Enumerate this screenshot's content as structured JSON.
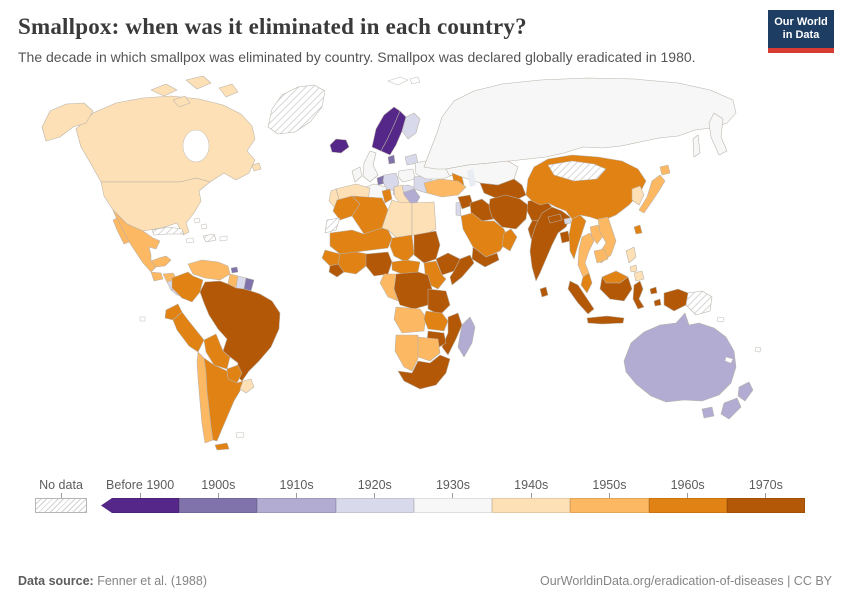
{
  "header": {
    "title": "Smallpox: when was it eliminated in each country?",
    "subtitle": "The decade in which smallpox was eliminated by country. Smallpox was declared globally eradicated in 1980.",
    "logo": {
      "line1": "Our World",
      "line2": "in Data",
      "bg_color": "#1d3d63",
      "accent_color": "#d73c32"
    }
  },
  "legend": {
    "no_data_label": "No data",
    "categories": [
      {
        "label": "Before 1900",
        "color": "#542788"
      },
      {
        "label": "1900s",
        "color": "#8073ac"
      },
      {
        "label": "1910s",
        "color": "#b2abd2"
      },
      {
        "label": "1920s",
        "color": "#d8daeb"
      },
      {
        "label": "1930s",
        "color": "#f7f7f7"
      },
      {
        "label": "1940s",
        "color": "#fee0b6"
      },
      {
        "label": "1950s",
        "color": "#fdb863"
      },
      {
        "label": "1960s",
        "color": "#e08214"
      },
      {
        "label": "1970s",
        "color": "#b35806"
      }
    ]
  },
  "footer": {
    "source_label": "Data source:",
    "source_value": "Fenner et al. (1988)",
    "credit": "OurWorldinData.org/eradication-of-diseases | CC BY"
  },
  "chart_data": {
    "type": "choropleth_map",
    "title": "Smallpox: when was it eliminated in each country?",
    "unit": "decade of smallpox elimination",
    "note": "Smallpox was declared globally eradicated in 1980",
    "categories": [
      "No data",
      "Before 1900",
      "1900s",
      "1910s",
      "1920s",
      "1930s",
      "1940s",
      "1950s",
      "1960s",
      "1970s"
    ],
    "regions": [
      {
        "name": "Canada",
        "category": "1940s"
      },
      {
        "name": "Greenland",
        "category": "No data"
      },
      {
        "name": "United States",
        "category": "1940s"
      },
      {
        "name": "Mexico",
        "category": "1950s"
      },
      {
        "name": "Guatemala",
        "category": "1950s"
      },
      {
        "name": "Honduras",
        "category": "1950s"
      },
      {
        "name": "Nicaragua",
        "category": "1920s"
      },
      {
        "name": "Costa Rica & Panama",
        "category": "1920s"
      },
      {
        "name": "Cuba",
        "category": "No data"
      },
      {
        "name": "Haiti & Dominican Republic",
        "category": "No data"
      },
      {
        "name": "Venezuela",
        "category": "1950s"
      },
      {
        "name": "Trinidad & Tobago",
        "category": "1900s"
      },
      {
        "name": "Colombia",
        "category": "1960s"
      },
      {
        "name": "Guyana",
        "category": "1950s"
      },
      {
        "name": "Suriname",
        "category": "1920s"
      },
      {
        "name": "French Guiana",
        "category": "1900s"
      },
      {
        "name": "Brazil",
        "category": "1970s"
      },
      {
        "name": "Ecuador",
        "category": "1960s"
      },
      {
        "name": "Peru",
        "category": "1960s"
      },
      {
        "name": "Bolivia",
        "category": "1960s"
      },
      {
        "name": "Paraguay",
        "category": "1960s"
      },
      {
        "name": "Chile",
        "category": "1950s"
      },
      {
        "name": "Argentina",
        "category": "1960s"
      },
      {
        "name": "Uruguay",
        "category": "1940s"
      },
      {
        "name": "Iceland",
        "category": "Before 1900"
      },
      {
        "name": "Norway",
        "category": "Before 1900"
      },
      {
        "name": "Sweden",
        "category": "Before 1900"
      },
      {
        "name": "Finland",
        "category": "1920s"
      },
      {
        "name": "Baltic states",
        "category": "1920s"
      },
      {
        "name": "Denmark",
        "category": "1900s"
      },
      {
        "name": "United Kingdom",
        "category": "1930s"
      },
      {
        "name": "Ireland",
        "category": "1930s"
      },
      {
        "name": "Netherlands & Belgium",
        "category": "1900s"
      },
      {
        "name": "Germany",
        "category": "1920s"
      },
      {
        "name": "France",
        "category": "1930s"
      },
      {
        "name": "Poland",
        "category": "1930s"
      },
      {
        "name": "Czechoslovakia & Hungary",
        "category": "1920s"
      },
      {
        "name": "Romania & Bulgaria",
        "category": "1920s"
      },
      {
        "name": "Yugoslavia (Balkans)",
        "category": "1910s"
      },
      {
        "name": "Greece",
        "category": "1940s"
      },
      {
        "name": "Ukraine & Belarus",
        "category": "1930s"
      },
      {
        "name": "Spain",
        "category": "1940s"
      },
      {
        "name": "Portugal",
        "category": "1940s"
      },
      {
        "name": "Italy",
        "category": "1940s"
      },
      {
        "name": "Russia (USSR)",
        "category": "1930s"
      },
      {
        "name": "Kazakhstan",
        "category": "1930s"
      },
      {
        "name": "Caucasus",
        "category": "1960s"
      },
      {
        "name": "Uzbekistan & Turkmenistan",
        "category": "1970s"
      },
      {
        "name": "Turkey",
        "category": "1950s"
      },
      {
        "name": "Syria",
        "category": "1970s"
      },
      {
        "name": "Lebanon & Israel",
        "category": "1920s"
      },
      {
        "name": "Iraq",
        "category": "1970s"
      },
      {
        "name": "Iran",
        "category": "1970s"
      },
      {
        "name": "Afghanistan",
        "category": "1970s"
      },
      {
        "name": "Pakistan",
        "category": "1970s"
      },
      {
        "name": "Saudi Arabia",
        "category": "1960s"
      },
      {
        "name": "Yemen",
        "category": "1970s"
      },
      {
        "name": "Oman",
        "category": "1960s"
      },
      {
        "name": "Morocco",
        "category": "1960s"
      },
      {
        "name": "Western Sahara",
        "category": "No data"
      },
      {
        "name": "Algeria",
        "category": "1960s"
      },
      {
        "name": "Tunisia",
        "category": "1960s"
      },
      {
        "name": "Libya",
        "category": "1940s"
      },
      {
        "name": "Egypt",
        "category": "1940s"
      },
      {
        "name": "Mali & Niger",
        "category": "1960s"
      },
      {
        "name": "Chad",
        "category": "1960s"
      },
      {
        "name": "Senegal & Guinea",
        "category": "1960s"
      },
      {
        "name": "Sierra Leone & Liberia",
        "category": "1970s"
      },
      {
        "name": "Ghana & Côte d'Ivoire",
        "category": "1960s"
      },
      {
        "name": "Nigeria",
        "category": "1970s"
      },
      {
        "name": "Cameroon & Central African Rep.",
        "category": "1960s"
      },
      {
        "name": "Sudan",
        "category": "1970s"
      },
      {
        "name": "Ethiopia",
        "category": "1970s"
      },
      {
        "name": "Somalia",
        "category": "1970s"
      },
      {
        "name": "Kenya & Uganda",
        "category": "1960s"
      },
      {
        "name": "Democratic Republic of Congo",
        "category": "1970s"
      },
      {
        "name": "Gabon & Congo",
        "category": "1950s"
      },
      {
        "name": "Tanzania",
        "category": "1970s"
      },
      {
        "name": "Angola",
        "category": "1950s"
      },
      {
        "name": "Zambia",
        "category": "1960s"
      },
      {
        "name": "Mozambique",
        "category": "1970s"
      },
      {
        "name": "Zimbabwe",
        "category": "1970s"
      },
      {
        "name": "Namibia",
        "category": "1950s"
      },
      {
        "name": "Botswana",
        "category": "1950s"
      },
      {
        "name": "South Africa",
        "category": "1970s"
      },
      {
        "name": "Madagascar",
        "category": "1910s"
      },
      {
        "name": "India",
        "category": "1970s"
      },
      {
        "name": "Nepal",
        "category": "1970s"
      },
      {
        "name": "Bhutan",
        "category": "1920s"
      },
      {
        "name": "Bangladesh",
        "category": "1970s"
      },
      {
        "name": "Sri Lanka",
        "category": "1970s"
      },
      {
        "name": "Myanmar",
        "category": "1960s"
      },
      {
        "name": "China",
        "category": "1960s"
      },
      {
        "name": "Mongolia",
        "category": "No data"
      },
      {
        "name": "North & South Korea",
        "category": "1940s"
      },
      {
        "name": "Japan",
        "category": "1950s"
      },
      {
        "name": "Taiwan",
        "category": "1960s"
      },
      {
        "name": "Thailand",
        "category": "1950s"
      },
      {
        "name": "Laos",
        "category": "1950s"
      },
      {
        "name": "Vietnam",
        "category": "1950s"
      },
      {
        "name": "Cambodia",
        "category": "1950s"
      },
      {
        "name": "Malaysia (Peninsular)",
        "category": "1960s"
      },
      {
        "name": "Malaysia (Borneo)",
        "category": "1960s"
      },
      {
        "name": "Indonesia",
        "category": "1970s"
      },
      {
        "name": "Papua New Guinea",
        "category": "No data"
      },
      {
        "name": "Philippines",
        "category": "1940s"
      },
      {
        "name": "Australia",
        "category": "1910s"
      },
      {
        "name": "New Zealand",
        "category": "1910s"
      }
    ]
  }
}
